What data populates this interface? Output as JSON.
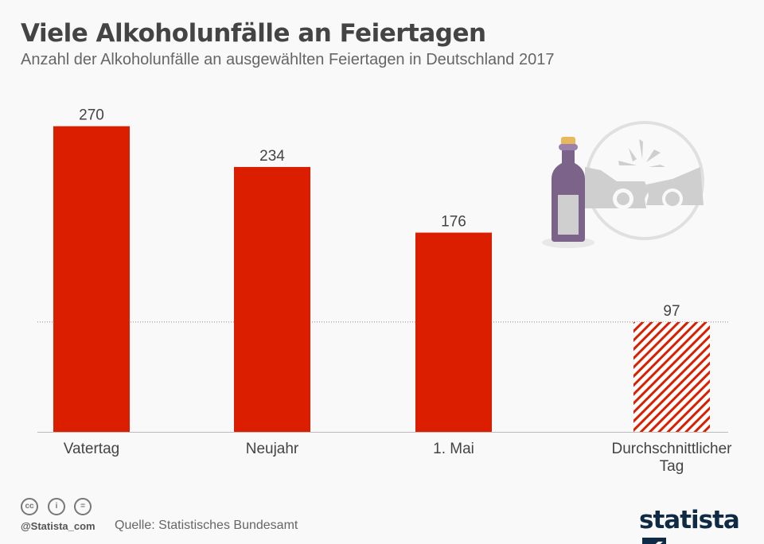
{
  "title": "Viele Alkoholunfälle an Feiertagen",
  "subtitle": "Anzahl der Alkoholunfälle an ausgewählten Feiertagen in Deutschland 2017",
  "footer": {
    "handle": "@Statista_com",
    "source": "Quelle: Statistisches Bundesamt",
    "logo": "statista"
  },
  "colors": {
    "bar": "#dc1e00",
    "hatch": "#dc1e00",
    "illustration_bottle": "#7b6389",
    "illustration_gray": "#cfcfcf"
  },
  "chart_data": {
    "type": "bar",
    "categories": [
      "Vatertag",
      "Neujahr",
      "1. Mai",
      "Durchschnittlicher Tag"
    ],
    "values": [
      270,
      234,
      176,
      97
    ],
    "styles": [
      "solid",
      "solid",
      "solid",
      "hatched"
    ],
    "reference_line": {
      "value": 97,
      "style": "dotted"
    },
    "ylim": [
      0,
      300
    ],
    "grid": false,
    "xlabel": "",
    "ylabel": ""
  }
}
